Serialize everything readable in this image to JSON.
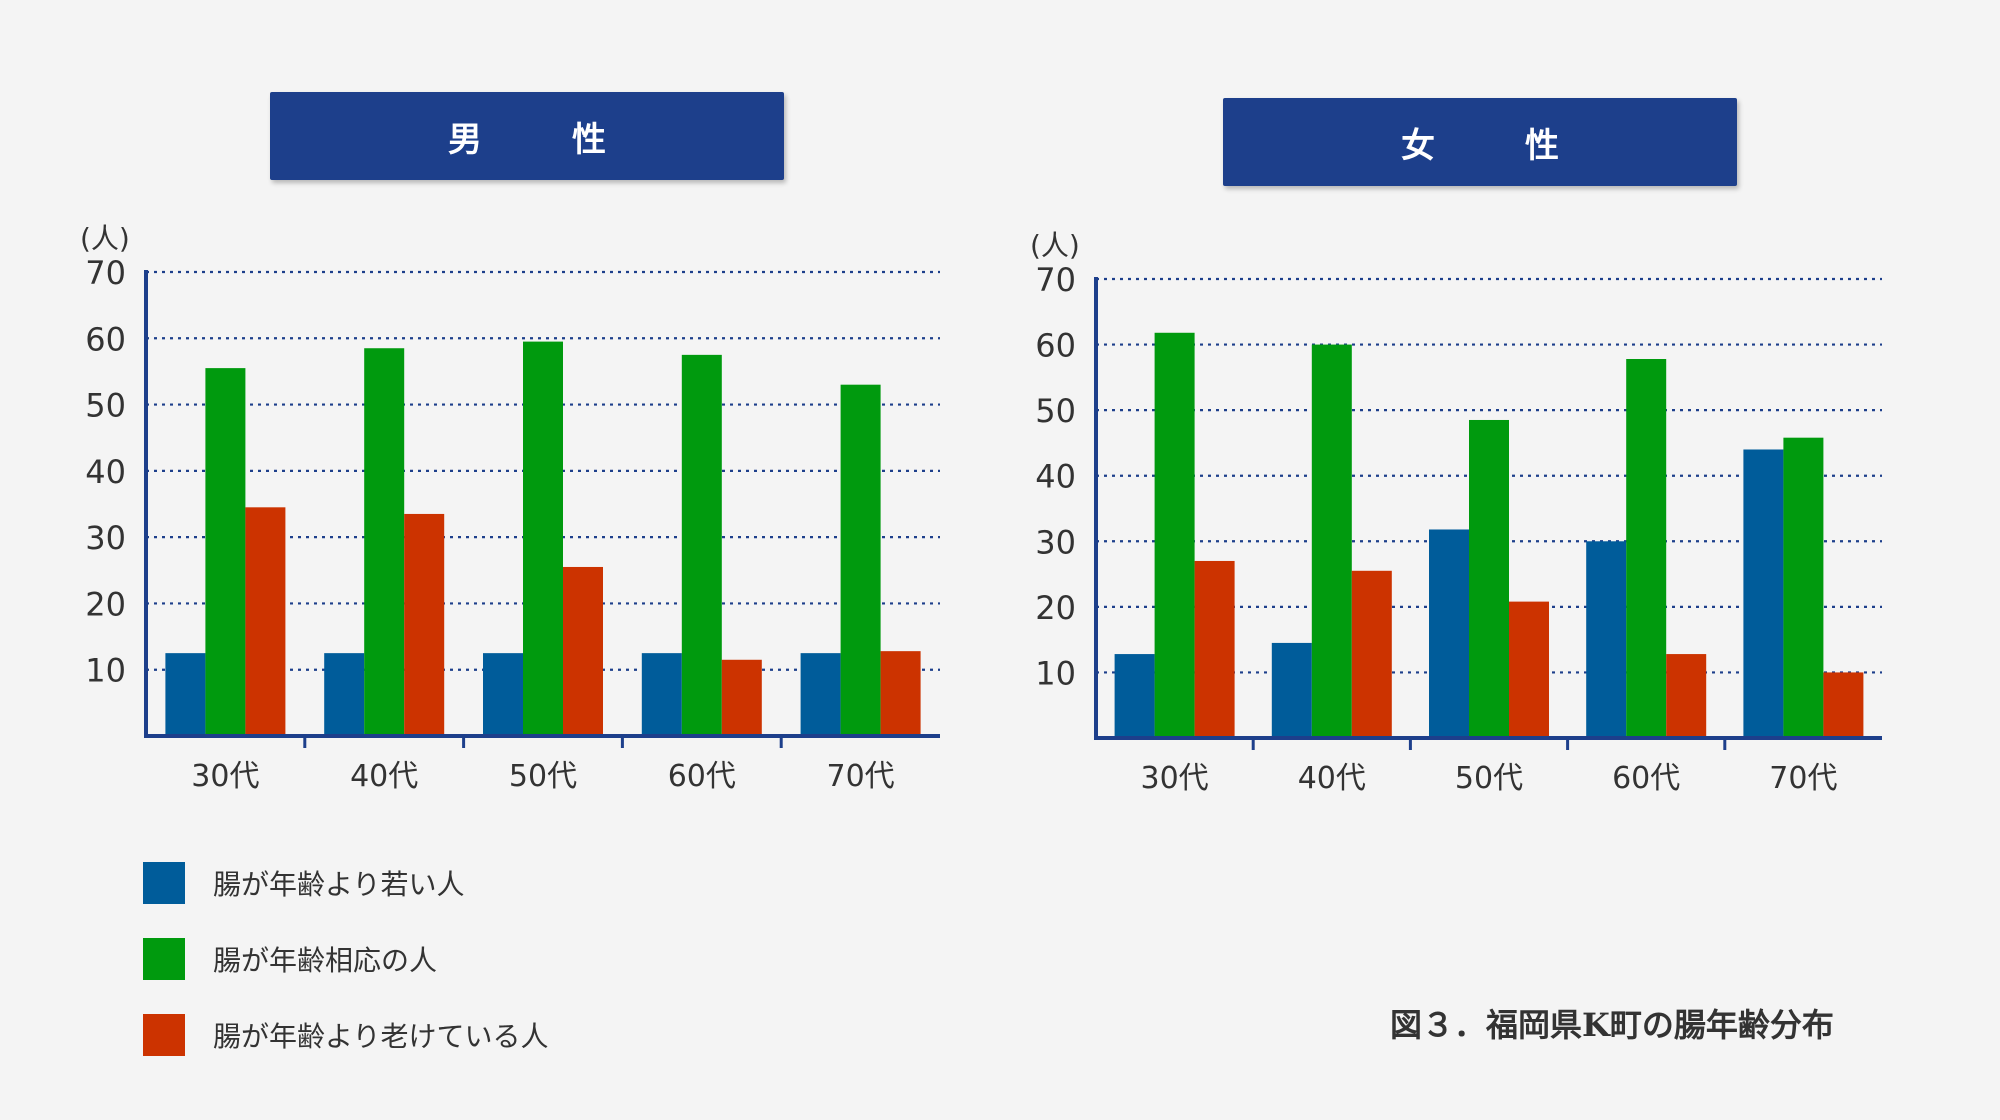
{
  "colors": {
    "young": "#005c9a",
    "normal": "#009a0e",
    "old": "#cc3300",
    "axis": "#1d3f8b",
    "header": "#1d3f8b"
  },
  "legend": [
    {
      "label": "腸が年齢より若い人",
      "color": "#005c9a"
    },
    {
      "label": "腸が年齢相応の人",
      "color": "#009a0e"
    },
    {
      "label": "腸が年齢より老けている人",
      "color": "#cc3300"
    }
  ],
  "caption": "図３．福岡県K町の腸年齢分布",
  "chart_data": [
    {
      "type": "bar",
      "title": "男　性",
      "ylabel": "(人)",
      "categories": [
        "30代",
        "40代",
        "50代",
        "60代",
        "70代"
      ],
      "yticks": [
        10,
        20,
        30,
        40,
        50,
        60,
        70
      ],
      "ylim": [
        0,
        70
      ],
      "grid": true,
      "series": [
        {
          "name": "腸が年齢より若い人",
          "values": [
            12.5,
            12.5,
            12.5,
            12.5,
            12.5
          ]
        },
        {
          "name": "腸が年齢相応の人",
          "values": [
            55.5,
            58.5,
            59.5,
            57.5,
            53
          ]
        },
        {
          "name": "腸が年齢より老けている人",
          "values": [
            34.5,
            33.5,
            25.5,
            11.5,
            12.8
          ]
        }
      ]
    },
    {
      "type": "bar",
      "title": "女　性",
      "ylabel": "(人)",
      "categories": [
        "30代",
        "40代",
        "50代",
        "60代",
        "70代"
      ],
      "yticks": [
        10,
        20,
        30,
        40,
        50,
        60,
        70
      ],
      "ylim": [
        0,
        70
      ],
      "grid": true,
      "series": [
        {
          "name": "腸が年齢より若い人",
          "values": [
            12.8,
            14.5,
            31.8,
            30,
            44
          ]
        },
        {
          "name": "腸が年齢相応の人",
          "values": [
            61.8,
            60,
            48.5,
            57.8,
            45.8
          ]
        },
        {
          "name": "腸が年齢より老けている人",
          "values": [
            27,
            25.5,
            20.8,
            12.8,
            10
          ]
        }
      ]
    }
  ]
}
